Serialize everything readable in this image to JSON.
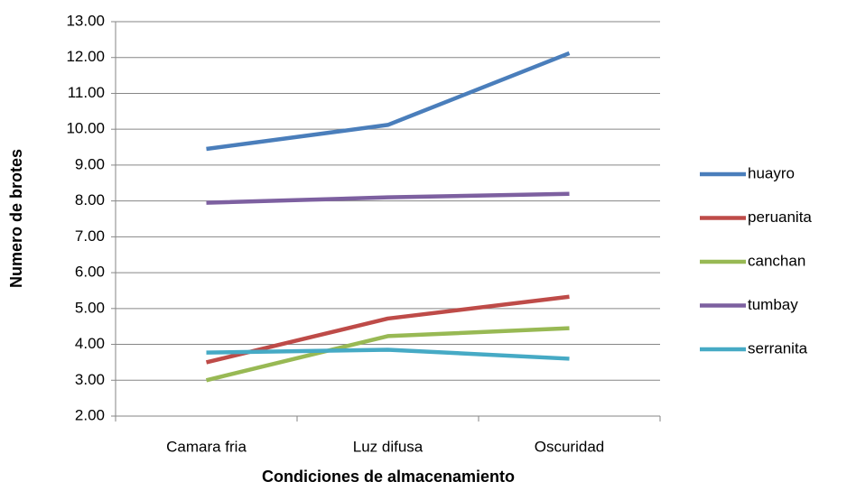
{
  "chart_data": {
    "type": "line",
    "x_label": "Condiciones de almacenamiento",
    "y_label": "Numero de brotes",
    "categories": [
      "Camara fria",
      "Luz difusa",
      "Oscuridad"
    ],
    "series": [
      {
        "name": "huayro",
        "color": "#4a7ebb",
        "values": [
          9.45,
          10.12,
          12.12
        ]
      },
      {
        "name": "peruanita",
        "color": "#be4b48",
        "values": [
          3.5,
          4.72,
          5.33
        ]
      },
      {
        "name": "canchan",
        "color": "#98b954",
        "values": [
          3.0,
          4.23,
          4.45
        ]
      },
      {
        "name": "tumbay",
        "color": "#7d60a0",
        "values": [
          7.95,
          8.1,
          8.2
        ]
      },
      {
        "name": "serranita",
        "color": "#46aac5",
        "values": [
          3.77,
          3.85,
          3.6
        ]
      }
    ],
    "ylim": [
      2,
      13
    ],
    "yticks": [
      {
        "value": 2,
        "label": "2.00"
      },
      {
        "value": 3,
        "label": "3.00"
      },
      {
        "value": 4,
        "label": "4.00"
      },
      {
        "value": 5,
        "label": "5.00"
      },
      {
        "value": 6,
        "label": "6.00"
      },
      {
        "value": 7,
        "label": "7.00"
      },
      {
        "value": 8,
        "label": "8.00"
      },
      {
        "value": 9,
        "label": "9.00"
      },
      {
        "value": 10,
        "label": "10.00"
      },
      {
        "value": 11,
        "label": "11.00"
      },
      {
        "value": 12,
        "label": "12.00"
      },
      {
        "value": 13,
        "label": "13.00"
      }
    ],
    "grid": true,
    "legend": "right"
  }
}
